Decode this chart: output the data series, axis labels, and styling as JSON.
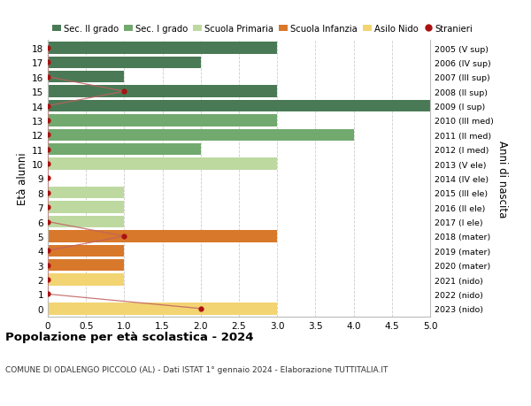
{
  "ages": [
    18,
    17,
    16,
    15,
    14,
    13,
    12,
    11,
    10,
    9,
    8,
    7,
    6,
    5,
    4,
    3,
    2,
    1,
    0
  ],
  "years": [
    "2005 (V sup)",
    "2006 (IV sup)",
    "2007 (III sup)",
    "2008 (II sup)",
    "2009 (I sup)",
    "2010 (III med)",
    "2011 (II med)",
    "2012 (I med)",
    "2013 (V ele)",
    "2014 (IV ele)",
    "2015 (III ele)",
    "2016 (II ele)",
    "2017 (I ele)",
    "2018 (mater)",
    "2019 (mater)",
    "2020 (mater)",
    "2021 (nido)",
    "2022 (nido)",
    "2023 (nido)"
  ],
  "bar_values": [
    3,
    2,
    1,
    3,
    5,
    3,
    4,
    2,
    3,
    0,
    1,
    1,
    1,
    3,
    1,
    1,
    1,
    0,
    3
  ],
  "stranieri": [
    0,
    0,
    0,
    1,
    0,
    0,
    0,
    0,
    0,
    0,
    0,
    0,
    0,
    1,
    0,
    0,
    0,
    0,
    2
  ],
  "bar_colors": [
    "#4a7a55",
    "#4a7a55",
    "#4a7a55",
    "#4a7a55",
    "#4a7a55",
    "#72a96e",
    "#72a96e",
    "#72a96e",
    "#bdd9a0",
    "#bdd9a0",
    "#bdd9a0",
    "#bdd9a0",
    "#bdd9a0",
    "#d8782a",
    "#d8782a",
    "#d8782a",
    "#f2d472",
    "#f2d472",
    "#f2d472"
  ],
  "legend_labels": [
    "Sec. II grado",
    "Sec. I grado",
    "Scuola Primaria",
    "Scuola Infanzia",
    "Asilo Nido",
    "Stranieri"
  ],
  "legend_colors": [
    "#4a7a55",
    "#72a96e",
    "#bdd9a0",
    "#d8782a",
    "#f2d472",
    "#aa1111"
  ],
  "stranieri_color": "#aa1111",
  "stranieri_line_color": "#c06060",
  "title": "Popolazione per età scolastica - 2024",
  "subtitle": "COMUNE DI ODALENGO PICCOLO (AL) - Dati ISTAT 1° gennaio 2024 - Elaborazione TUTTITALIA.IT",
  "ylabel": "Età alunni",
  "ylabel2": "Anni di nascita",
  "xlim": [
    0,
    5.0
  ],
  "xticks": [
    0,
    0.5,
    1.0,
    1.5,
    2.0,
    2.5,
    3.0,
    3.5,
    4.0,
    4.5,
    5.0
  ],
  "xtick_labels": [
    "0",
    "0.5",
    "1.0",
    "1.5",
    "2.0",
    "2.5",
    "3.0",
    "3.5",
    "4.0",
    "4.5",
    "5.0"
  ],
  "bar_height": 0.82,
  "bg_color": "#ffffff",
  "grid_color": "#cccccc"
}
